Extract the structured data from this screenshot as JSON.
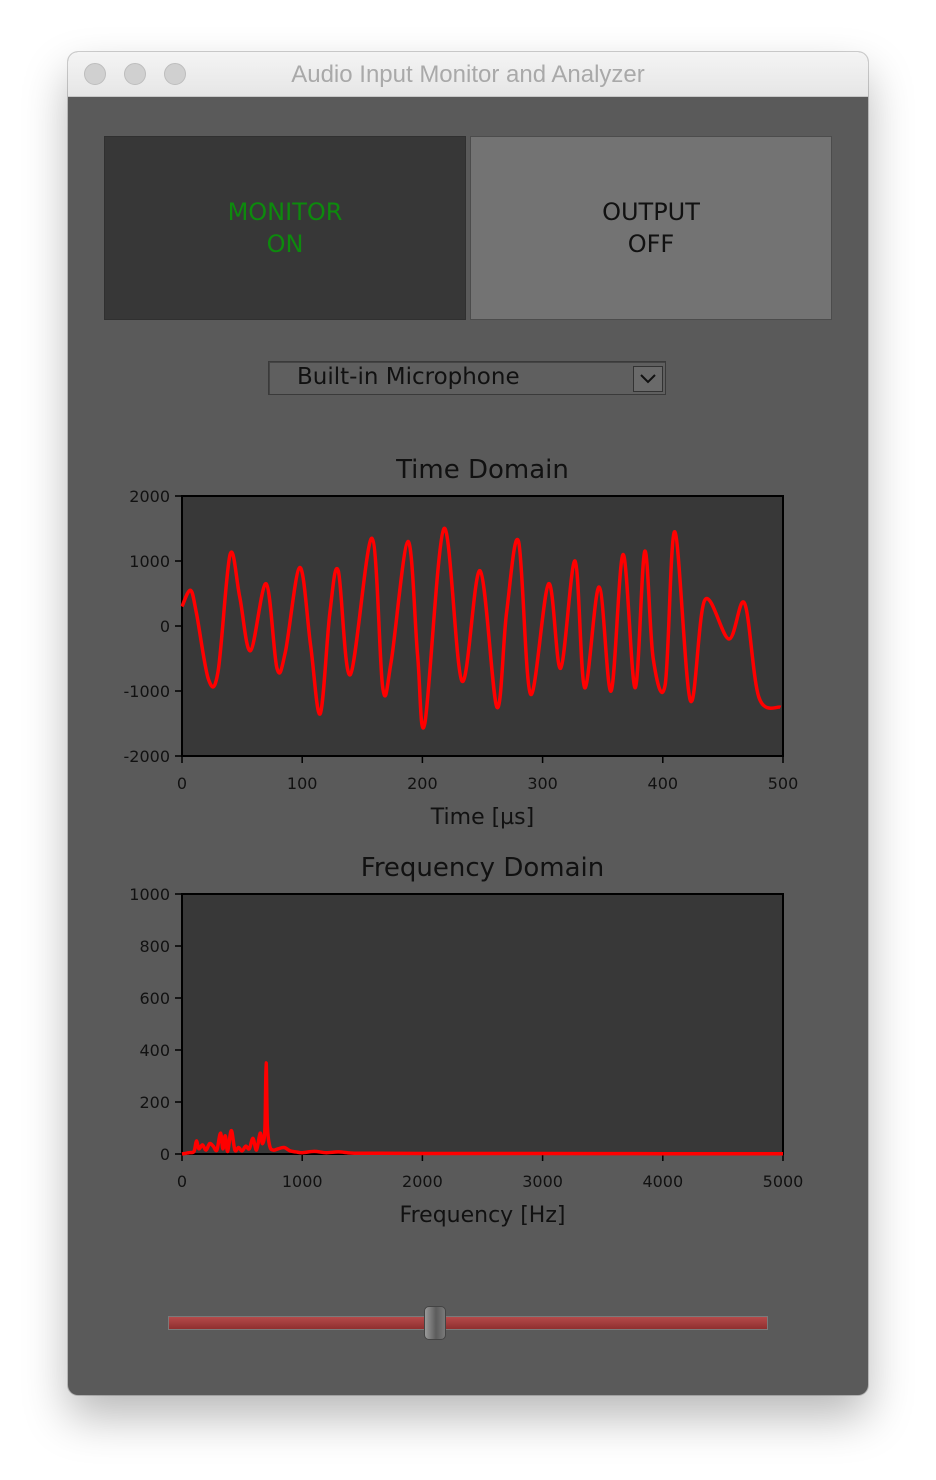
{
  "window": {
    "title": "Audio Input Monitor and Analyzer"
  },
  "controls": {
    "monitor_button": {
      "label": "MONITOR\nON",
      "color": "#0d8a0d"
    },
    "output_button": {
      "label": "OUTPUT\nOFF",
      "color": "#111111"
    },
    "input_device": {
      "selected": "Built-in Microphone"
    },
    "slider": {
      "value_fraction": 0.445,
      "track_color": "#a33c3c"
    }
  },
  "icons": {
    "dropdown": "chevron-down-icon"
  },
  "chart_data": [
    {
      "type": "line",
      "title": "Time Domain",
      "xlabel": "Time [µs]",
      "ylabel": "",
      "xlim": [
        0,
        500
      ],
      "ylim": [
        -2000,
        2000
      ],
      "xticks": [
        "0",
        "100",
        "200",
        "300",
        "400",
        "500"
      ],
      "yticks": [
        "2000",
        "1000",
        "0",
        "-1000",
        "-2000"
      ],
      "grid": false,
      "series": [
        {
          "color": "#ff0000",
          "x": [
            0,
            7,
            12,
            22,
            30,
            40,
            48,
            57,
            70,
            79,
            86,
            98,
            107,
            115,
            123,
            130,
            140,
            158,
            167,
            174,
            188,
            196,
            202,
            218,
            233,
            248,
            262,
            270,
            280,
            290,
            305,
            315,
            327,
            335,
            347,
            357,
            367,
            377,
            385,
            392,
            402,
            410,
            423,
            435,
            455,
            468,
            480,
            498
          ],
          "y": [
            300,
            550,
            200,
            -820,
            -700,
            1100,
            450,
            -380,
            650,
            -650,
            -400,
            900,
            -300,
            -1350,
            200,
            850,
            -750,
            1350,
            -950,
            -550,
            1300,
            -450,
            -1500,
            1500,
            -850,
            850,
            -1250,
            200,
            1300,
            -1050,
            650,
            -650,
            1000,
            -950,
            600,
            -1000,
            1100,
            -950,
            1150,
            -500,
            -900,
            1450,
            -1150,
            400,
            -200,
            350,
            -1100,
            -1250
          ]
        }
      ]
    },
    {
      "type": "line",
      "title": "Frequency Domain",
      "xlabel": "Frequency [Hz]",
      "ylabel": "",
      "xlim": [
        0,
        5000
      ],
      "ylim": [
        0,
        1000
      ],
      "xticks": [
        "0",
        "1000",
        "2000",
        "3000",
        "4000",
        "5000"
      ],
      "yticks": [
        "1000",
        "800",
        "600",
        "400",
        "200",
        "0"
      ],
      "grid": false,
      "series": [
        {
          "color": "#ff0000",
          "x": [
            0,
            60,
            100,
            120,
            140,
            170,
            200,
            230,
            260,
            290,
            320,
            340,
            360,
            380,
            410,
            440,
            470,
            500,
            530,
            560,
            590,
            620,
            650,
            670,
            690,
            700,
            710,
            730,
            760,
            800,
            850,
            900,
            950,
            1000,
            1100,
            1200,
            1300,
            1400,
            1500,
            2000,
            3000,
            4000,
            5000
          ],
          "y": [
            0,
            5,
            10,
            50,
            20,
            35,
            15,
            40,
            30,
            15,
            80,
            20,
            70,
            10,
            90,
            15,
            25,
            12,
            30,
            20,
            60,
            15,
            80,
            40,
            100,
            350,
            110,
            30,
            15,
            20,
            25,
            12,
            8,
            5,
            10,
            5,
            8,
            4,
            3,
            2,
            2,
            1,
            1
          ]
        }
      ]
    }
  ]
}
